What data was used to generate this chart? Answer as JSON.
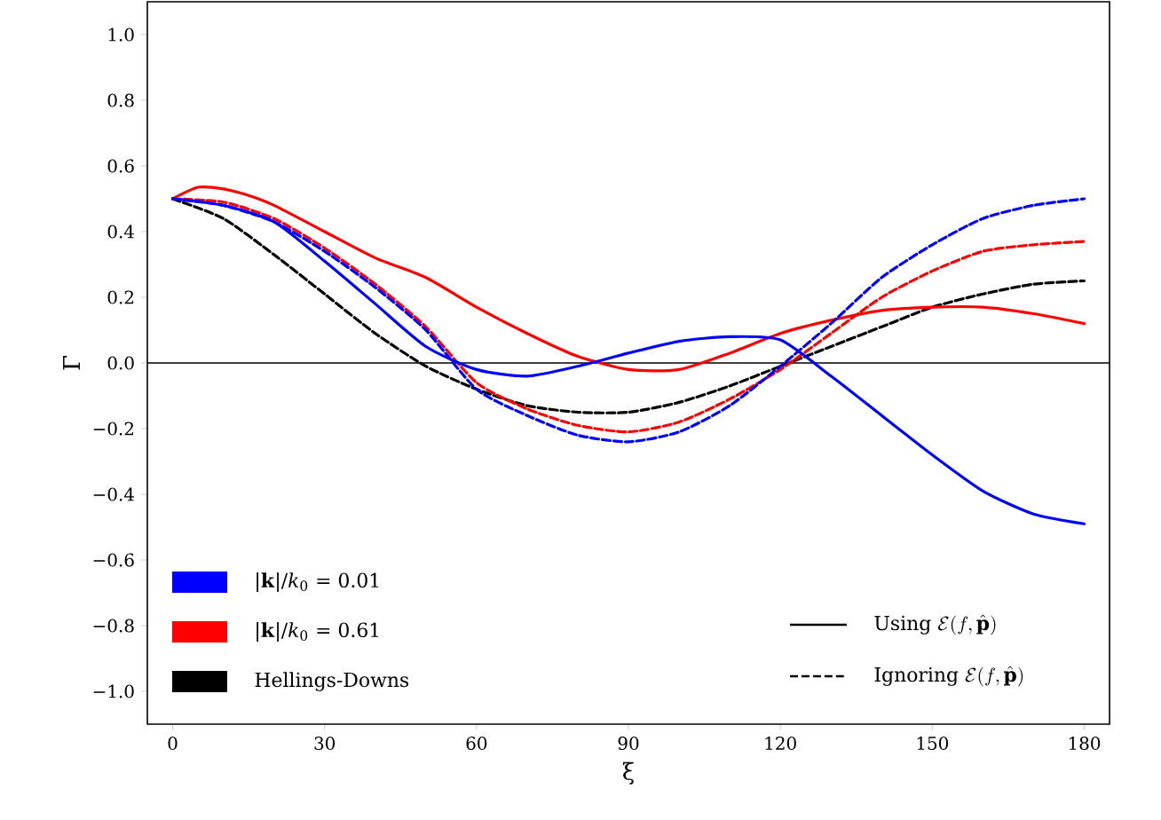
{
  "chart_data": {
    "type": "line",
    "xlabel": "ξ",
    "ylabel": "Γ",
    "x": [
      0,
      10,
      20,
      30,
      40,
      50,
      60,
      70,
      80,
      90,
      100,
      110,
      120,
      130,
      140,
      150,
      160,
      170,
      180
    ],
    "series": [
      {
        "name": "|**k**|/*k*$_{0}$ = 0.01",
        "color": "#0000ff",
        "line_style": "solid",
        "values": [
          0.5,
          0.48,
          0.43,
          0.31,
          0.18,
          0.05,
          -0.02,
          -0.04,
          -0.01,
          0.03,
          0.066,
          0.08,
          0.07,
          -0.04,
          -0.16,
          -0.28,
          -0.39,
          -0.46,
          -0.49
        ]
      },
      {
        "color": "#0000ff",
        "line_style": "dashed",
        "values": [
          0.5,
          0.48,
          0.43,
          0.34,
          0.23,
          0.1,
          -0.08,
          -0.16,
          -0.22,
          -0.24,
          -0.21,
          -0.13,
          -0.01,
          0.12,
          0.26,
          0.36,
          0.44,
          0.48,
          0.5
        ]
      },
      {
        "name": "|**k**|/*k*$_{0}$ = 0.61",
        "color": "#ff0000",
        "line_style": "solid",
        "x": [
          0,
          5,
          10,
          15,
          20,
          30,
          40,
          50,
          60,
          70,
          80,
          90,
          100,
          110,
          120,
          130,
          140,
          150,
          160,
          170,
          180
        ],
        "values": [
          0.5,
          0.535,
          0.53,
          0.51,
          0.48,
          0.4,
          0.32,
          0.26,
          0.17,
          0.09,
          0.02,
          -0.02,
          -0.02,
          0.03,
          0.09,
          0.13,
          0.16,
          0.17,
          0.17,
          0.15,
          0.12
        ]
      },
      {
        "color": "#ff0000",
        "line_style": "dashed",
        "values": [
          0.5,
          0.49,
          0.44,
          0.35,
          0.24,
          0.11,
          -0.06,
          -0.14,
          -0.19,
          -0.21,
          -0.18,
          -0.11,
          -0.02,
          0.09,
          0.2,
          0.28,
          0.34,
          0.36,
          0.37
        ]
      },
      {
        "name": "Hellings-Downs",
        "color": "#000000",
        "line_style": "dashed",
        "values": [
          0.5,
          0.44,
          0.33,
          0.21,
          0.09,
          -0.01,
          -0.08,
          -0.13,
          -0.15,
          -0.15,
          -0.12,
          -0.07,
          -0.01,
          0.05,
          0.11,
          0.17,
          0.21,
          0.24,
          0.25
        ]
      }
    ],
    "annotations": [
      "\\textrm{Using }\\mathcal{E}(f,\\hat{\\mathbf{p}})",
      "\\textrm{Ignoring }\\mathcal{E}(f,\\hat{\\mathbf{p}})"
    ],
    "ref_lines": [
      {
        "axis": "y",
        "value": 0,
        "color": "#000000"
      }
    ],
    "xlim": [
      -5,
      185
    ],
    "ylim": [
      -1.1,
      1.1
    ],
    "xticks": [
      0,
      30,
      60,
      90,
      120,
      150,
      180
    ],
    "yticks": [
      {
        "value": -1.0,
        "label": "−1.0"
      },
      {
        "value": -0.8,
        "label": "−0.8"
      },
      {
        "value": -0.6,
        "label": "−0.6"
      },
      {
        "value": -0.4,
        "label": "−0.4"
      },
      {
        "value": -0.2,
        "label": "−0.2"
      },
      {
        "value": 0.0,
        "label": "0.0"
      },
      {
        "value": 0.2,
        "label": "0.2"
      },
      {
        "value": 0.4,
        "label": "0.4"
      },
      {
        "value": 0.6,
        "label": "0.6"
      },
      {
        "value": 0.8,
        "label": "0.8"
      },
      {
        "value": 1.0,
        "label": "1.0"
      }
    ],
    "legend": "bottom left",
    "marker": "none"
  }
}
